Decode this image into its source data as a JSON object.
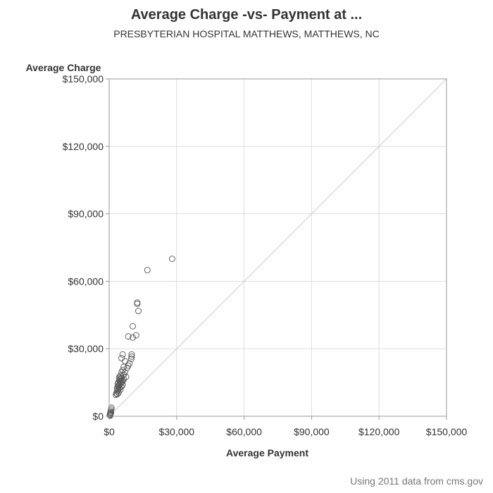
{
  "chart_data": {
    "type": "scatter",
    "title": "Average Charge -vs- Payment at ...",
    "subtitle": "PRESBYTERIAN HOSPITAL MATTHEWS, MATTHEWS, NC",
    "xlabel": "Average Payment",
    "ylabel": "Average Charge",
    "xlim": [
      0,
      150000
    ],
    "ylim": [
      0,
      150000
    ],
    "x_ticks": [
      0,
      30000,
      60000,
      90000,
      120000,
      150000
    ],
    "y_ticks": [
      0,
      30000,
      60000,
      90000,
      120000,
      150000
    ],
    "x_tick_labels": [
      "$0",
      "$30,000",
      "$60,000",
      "$90,000",
      "$120,000",
      "$150,000"
    ],
    "y_tick_labels": [
      "$0",
      "$30,000",
      "$60,000",
      "$90,000",
      "$120,000",
      "$150,000"
    ],
    "grid": true,
    "reference_line": "y = x",
    "marker": "open-circle",
    "colors": {
      "marker": "#555555",
      "grid": "#dddddd",
      "frame": "#999999",
      "reference": "#cccccc"
    },
    "points": [
      [
        28000,
        70000
      ],
      [
        17000,
        65000
      ],
      [
        12500,
        50500
      ],
      [
        12500,
        50000
      ],
      [
        13000,
        46800
      ],
      [
        10500,
        40000
      ],
      [
        12000,
        36000
      ],
      [
        10500,
        35000
      ],
      [
        8500,
        35500
      ],
      [
        6000,
        27500
      ],
      [
        10000,
        27500
      ],
      [
        10000,
        26500
      ],
      [
        9800,
        25500
      ],
      [
        5500,
        25800
      ],
      [
        7000,
        24500
      ],
      [
        9000,
        23500
      ],
      [
        8500,
        22500
      ],
      [
        6500,
        22000
      ],
      [
        8000,
        21500
      ],
      [
        6000,
        20500
      ],
      [
        7000,
        19500
      ],
      [
        5500,
        19500
      ],
      [
        6500,
        18500
      ],
      [
        7500,
        17500
      ],
      [
        5000,
        18000
      ],
      [
        4500,
        17500
      ],
      [
        5500,
        17000
      ],
      [
        6500,
        16500
      ],
      [
        4500,
        16000
      ],
      [
        5000,
        15500
      ],
      [
        5500,
        15200
      ],
      [
        4800,
        15000
      ],
      [
        4000,
        15000
      ],
      [
        5200,
        14500
      ],
      [
        4500,
        14000
      ],
      [
        6000,
        14000
      ],
      [
        3800,
        14300
      ],
      [
        4200,
        13500
      ],
      [
        5500,
        13200
      ],
      [
        4000,
        13000
      ],
      [
        4500,
        12500
      ],
      [
        3500,
        12500
      ],
      [
        4000,
        12000
      ],
      [
        5000,
        11800
      ],
      [
        3800,
        11500
      ],
      [
        3500,
        11000
      ],
      [
        4200,
        10500
      ],
      [
        3200,
        10200
      ],
      [
        3600,
        9800
      ],
      [
        3000,
        9500
      ],
      [
        5000,
        16500
      ],
      [
        6000,
        15500
      ],
      [
        4600,
        16800
      ],
      [
        5800,
        16200
      ],
      [
        1000,
        3800
      ],
      [
        900,
        3000
      ],
      [
        700,
        2400
      ],
      [
        800,
        1800
      ],
      [
        500,
        1500
      ],
      [
        600,
        1000
      ],
      [
        400,
        800
      ],
      [
        300,
        500
      ],
      [
        500,
        300
      ],
      [
        700,
        1300
      ]
    ]
  },
  "footnote": "Using 2011 data from cms.gov"
}
